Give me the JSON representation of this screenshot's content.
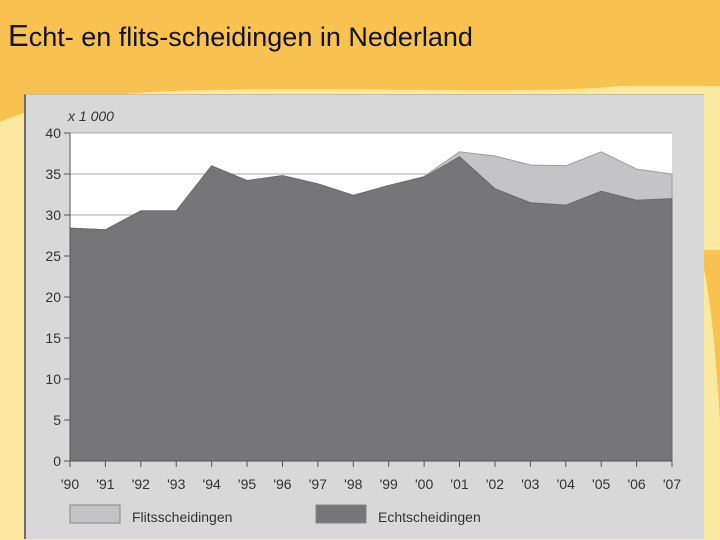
{
  "slide": {
    "title_first_letter": "E",
    "title_rest": "cht- en flits-scheidingen in Nederland"
  },
  "colors": {
    "slide_background": "#fbe9a0",
    "decoration": "#f7c24f",
    "panel": "#d8d8d8",
    "plot_background": "#ffffff",
    "echtscheidingen": "#767678",
    "flitsscheidingen": "#c4c4c6"
  },
  "chart_data": {
    "type": "area",
    "stacked": true,
    "unit_label": "x 1 000",
    "categories": [
      "'90",
      "'91",
      "'92",
      "'93",
      "'94",
      "'95",
      "'96",
      "'97",
      "'98",
      "'99",
      "'00",
      "'01",
      "'02",
      "'03",
      "'04",
      "'05",
      "'06",
      "'07"
    ],
    "ylim": [
      0,
      40
    ],
    "yticks": [
      0,
      5,
      10,
      15,
      20,
      25,
      30,
      35,
      40
    ],
    "grid": "horizontal",
    "legend_position": "bottom",
    "series": [
      {
        "name": "Echtscheidingen",
        "values": [
          28.4,
          28.2,
          30.5,
          30.5,
          36.0,
          34.2,
          34.8,
          33.8,
          32.4,
          33.6,
          34.6,
          37.1,
          33.2,
          31.5,
          31.2,
          32.9,
          31.8,
          32.0
        ]
      },
      {
        "name": "Flitsscheidingen",
        "values": [
          0,
          0,
          0,
          0,
          0,
          0,
          0,
          0,
          0,
          0,
          0.1,
          0.6,
          4.0,
          4.6,
          4.8,
          4.8,
          3.8,
          3.0
        ]
      }
    ]
  }
}
